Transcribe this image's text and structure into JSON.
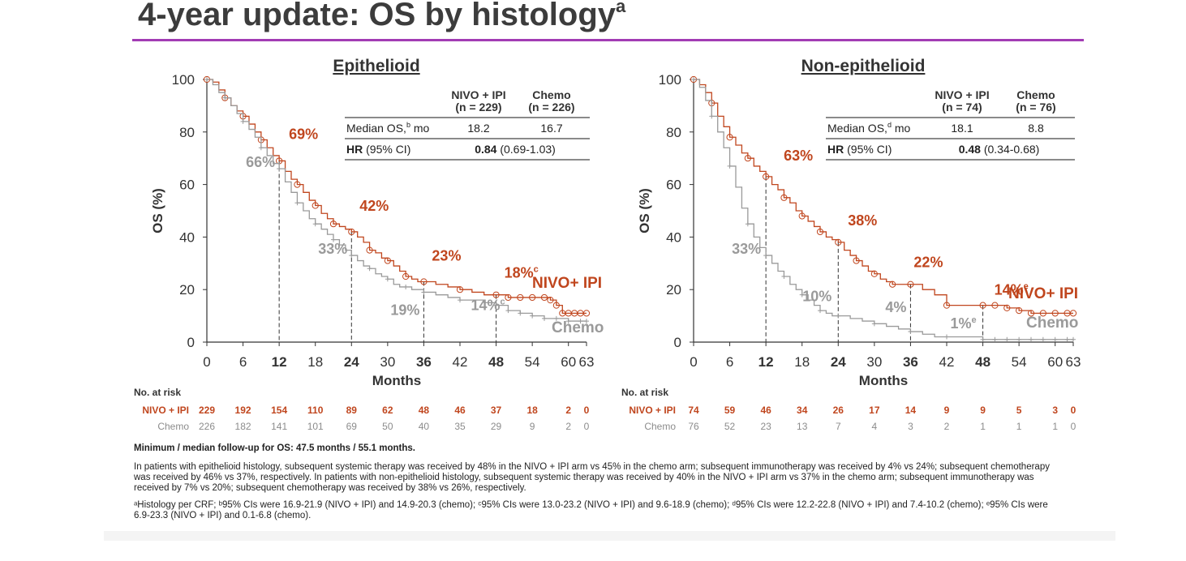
{
  "slide": {
    "title": "4-year update: OS by histology",
    "title_sup": "a",
    "footer_followup": "Minimum / median follow-up for OS: 47.5 months / 55.1 months.",
    "footer_para": "In patients with epithelioid histology, subsequent systemic therapy was received by 48% in the NIVO + IPI arm vs 45% in the chemo arm; subsequent immunotherapy was received by 4% vs 24%; subsequent chemotherapy was received by 46% vs 37%, respectively. In patients with non-epithelioid histology, subsequent systemic therapy was received by 40% in the NIVO + IPI arm vs 37% in the chemo arm; subsequent immunotherapy was received by 7% vs 20%; subsequent chemotherapy was received by 38% vs 26%, respectively.",
    "footnotes": "ᵃHistology per CRF; ᵇ95% CIs were 16.9-21.9 (NIVO + IPI) and 14.9-20.3 (chemo); ᶜ95% CIs were 13.0-23.2 (NIVO + IPI) and 9.6-18.9 (chemo); ᵈ95% CIs were 12.2-22.8 (NIVO + IPI) and 7.4-10.2 (chemo); ᵉ95% CIs were 6.9-23.3 (NIVO + IPI) and 0.1-6.8 (chemo)."
  },
  "colors": {
    "nivo": "#c0461e",
    "chemo": "#9a9a9a",
    "rule": "#a23cb4"
  },
  "chart_data": [
    {
      "type": "line",
      "title": "Epithelioid",
      "xlabel": "Months",
      "ylabel": "OS (%)",
      "xlim": [
        0,
        63
      ],
      "ylim": [
        0,
        100
      ],
      "xticks": [
        "0",
        "6",
        "12",
        "18",
        "24",
        "30",
        "36",
        "42",
        "48",
        "54",
        "60",
        "63"
      ],
      "yticks": [
        "0",
        "20",
        "40",
        "60",
        "80",
        "100"
      ],
      "table": {
        "col1": "NIVO + IPI",
        "col1_n": "(n = 229)",
        "col2": "Chemo",
        "col2_n": "(n = 226)",
        "row1_label": "Median OS,",
        "row1_sup": "b",
        "row1_unit": " mo",
        "row1_v1": "18.2",
        "row1_v2": "16.7",
        "row2_label_b": "HR",
        "row2_label": " (95% CI)",
        "row2_val_b": "0.84",
        "row2_val": " (0.69-1.03)"
      },
      "landmarks": [
        {
          "x": 12,
          "nivo": "69%",
          "chemo": "66%"
        },
        {
          "x": 24,
          "nivo": "42%",
          "chemo": "33%"
        },
        {
          "x": 36,
          "nivo": "23%",
          "chemo": "19%"
        },
        {
          "x": 48,
          "nivo": "18%",
          "nivo_sup": "c",
          "chemo": "14%",
          "chemo_sup": "c"
        }
      ],
      "series": [
        {
          "name": "NIVO+ IPI",
          "x": [
            0,
            1,
            2,
            3,
            4,
            5,
            6,
            7,
            8,
            9,
            10,
            11,
            12,
            13,
            14,
            15,
            16,
            17,
            18,
            19,
            20,
            21,
            22,
            23,
            24,
            25,
            26,
            27,
            28,
            29,
            30,
            31,
            32,
            33,
            34,
            35,
            36,
            38,
            40,
            42,
            44,
            46,
            48,
            50,
            52,
            54,
            56,
            57,
            58,
            59,
            60,
            61,
            62,
            63
          ],
          "y": [
            100,
            99,
            96,
            93,
            90,
            88,
            86,
            83,
            80,
            77,
            74,
            71,
            69,
            65,
            62,
            60,
            57,
            54,
            52,
            49,
            47,
            45,
            44,
            43,
            42,
            40,
            38,
            35,
            34,
            32,
            31,
            29,
            27,
            25,
            24,
            23,
            23,
            22,
            21,
            20,
            19,
            18,
            18,
            17,
            17,
            17,
            17,
            16,
            14,
            11,
            11,
            11,
            11,
            11
          ]
        },
        {
          "name": "Chemo",
          "x": [
            0,
            1,
            2,
            3,
            4,
            5,
            6,
            7,
            8,
            9,
            10,
            11,
            12,
            13,
            14,
            15,
            16,
            17,
            18,
            19,
            20,
            21,
            22,
            23,
            24,
            25,
            26,
            27,
            28,
            29,
            30,
            31,
            32,
            33,
            34,
            35,
            36,
            38,
            40,
            42,
            44,
            46,
            48,
            50,
            52,
            54,
            56,
            58,
            60,
            62,
            63
          ],
          "y": [
            100,
            98,
            95,
            93,
            90,
            87,
            84,
            81,
            78,
            74,
            71,
            68,
            66,
            61,
            57,
            53,
            50,
            47,
            45,
            43,
            41,
            39,
            37,
            35,
            33,
            31,
            29,
            28,
            26,
            25,
            24,
            22,
            21,
            21,
            20,
            20,
            19,
            18,
            17,
            16,
            16,
            15,
            14,
            12,
            11,
            10,
            9,
            9,
            8,
            8,
            8
          ]
        }
      ],
      "series_labels": {
        "nivo": "NIVO+ IPI",
        "chemo": "Chemo"
      },
      "risk": {
        "label": "No. at risk",
        "nivo_name": "NIVO + IPI",
        "chemo_name": "Chemo",
        "nivo": [
          "229",
          "192",
          "154",
          "110",
          "89",
          "62",
          "48",
          "46",
          "37",
          "18",
          "2",
          "0"
        ],
        "chemo": [
          "226",
          "182",
          "141",
          "101",
          "69",
          "50",
          "40",
          "35",
          "29",
          "9",
          "2",
          "0"
        ]
      }
    },
    {
      "type": "line",
      "title": "Non-epithelioid",
      "xlabel": "Months",
      "ylabel": "OS (%)",
      "xlim": [
        0,
        63
      ],
      "ylim": [
        0,
        100
      ],
      "xticks": [
        "0",
        "6",
        "12",
        "18",
        "24",
        "30",
        "36",
        "42",
        "48",
        "54",
        "60",
        "63"
      ],
      "yticks": [
        "0",
        "20",
        "40",
        "60",
        "80",
        "100"
      ],
      "table": {
        "col1": "NIVO + IPI",
        "col1_n": "(n = 74)",
        "col2": "Chemo",
        "col2_n": "(n = 76)",
        "row1_label": "Median OS,",
        "row1_sup": "d",
        "row1_unit": " mo",
        "row1_v1": "18.1",
        "row1_v2": "8.8",
        "row2_label_b": "HR",
        "row2_label": " (95% CI)",
        "row2_val_b": "0.48",
        "row2_val": " (0.34-0.68)"
      },
      "landmarks": [
        {
          "x": 12,
          "nivo": "63%",
          "chemo": "33%"
        },
        {
          "x": 24,
          "nivo": "38%",
          "chemo": "10%"
        },
        {
          "x": 36,
          "nivo": "22%",
          "chemo": "4%"
        },
        {
          "x": 48,
          "nivo": "14%",
          "nivo_sup": "e",
          "chemo": "1%",
          "chemo_sup": "e"
        }
      ],
      "series": [
        {
          "name": "NIVO+ IPI",
          "x": [
            0,
            1,
            2,
            3,
            4,
            5,
            6,
            7,
            8,
            9,
            10,
            11,
            12,
            13,
            14,
            15,
            16,
            17,
            18,
            19,
            20,
            21,
            22,
            23,
            24,
            25,
            26,
            27,
            28,
            29,
            30,
            31,
            32,
            33,
            34,
            35,
            36,
            38,
            40,
            42,
            44,
            46,
            48,
            50,
            52,
            54,
            56,
            58,
            60,
            62,
            63
          ],
          "y": [
            100,
            98,
            95,
            91,
            86,
            82,
            78,
            75,
            72,
            70,
            67,
            65,
            63,
            60,
            58,
            55,
            53,
            50,
            48,
            46,
            44,
            42,
            40,
            39,
            38,
            35,
            33,
            31,
            29,
            27,
            26,
            24,
            23,
            22,
            22,
            22,
            22,
            20,
            18,
            14,
            14,
            14,
            14,
            14,
            13,
            12,
            11,
            11,
            11,
            11,
            11
          ]
        },
        {
          "name": "Chemo",
          "x": [
            0,
            1,
            2,
            3,
            4,
            5,
            6,
            7,
            8,
            9,
            10,
            11,
            12,
            13,
            14,
            15,
            16,
            17,
            18,
            19,
            20,
            21,
            22,
            23,
            24,
            26,
            28,
            30,
            32,
            34,
            36,
            38,
            40,
            42,
            44,
            46,
            48,
            50,
            52,
            54,
            56,
            58,
            60,
            62,
            63
          ],
          "y": [
            100,
            97,
            92,
            86,
            80,
            74,
            67,
            59,
            51,
            45,
            40,
            36,
            33,
            30,
            27,
            25,
            22,
            20,
            18,
            16,
            14,
            12,
            11,
            10,
            10,
            9,
            8,
            7,
            6,
            5,
            4,
            3,
            2,
            2,
            2,
            2,
            1,
            1,
            1,
            1,
            1,
            1,
            1,
            1,
            1
          ]
        }
      ],
      "series_labels": {
        "nivo": "NIVO+ IPI",
        "chemo": "Chemo"
      },
      "risk": {
        "label": "No. at risk",
        "nivo_name": "NIVO + IPI",
        "chemo_name": "Chemo",
        "nivo": [
          "74",
          "59",
          "46",
          "34",
          "26",
          "17",
          "14",
          "9",
          "9",
          "5",
          "3",
          "0"
        ],
        "chemo": [
          "76",
          "52",
          "23",
          "13",
          "7",
          "4",
          "3",
          "2",
          "1",
          "1",
          "1",
          "0"
        ]
      }
    }
  ]
}
